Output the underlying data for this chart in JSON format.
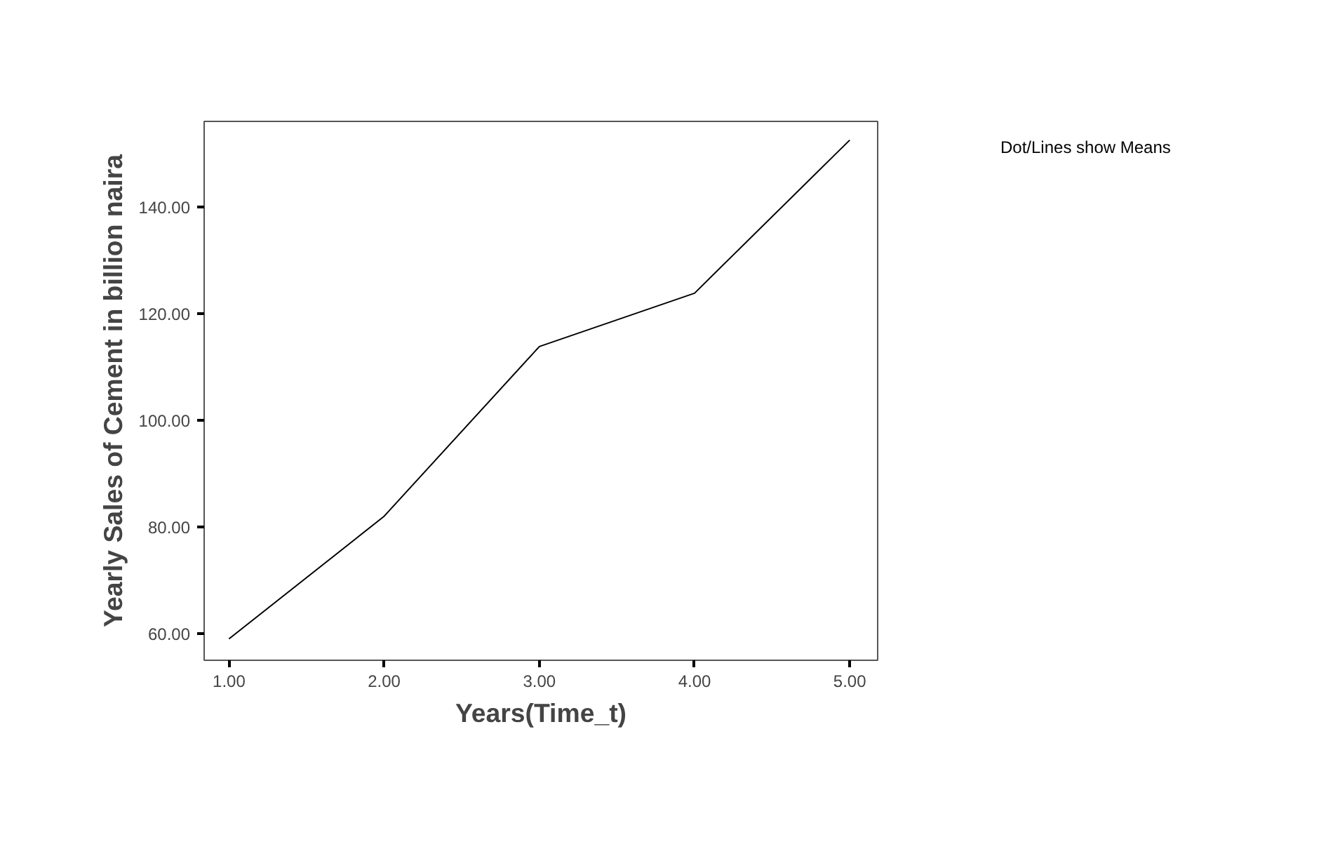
{
  "chart_data": {
    "type": "line",
    "xlabel": "Years(Time_t)",
    "ylabel": "Yearly Sales of Cement in billion naira",
    "annotations": [
      "Dot/Lines show Means"
    ],
    "x": [
      1,
      2,
      3,
      4,
      5
    ],
    "series": [
      {
        "color": "#000000",
        "values": [
          59,
          82,
          113.8,
          123.8,
          152.5
        ]
      }
    ],
    "xlim": [
      0.84,
      5.18
    ],
    "ylim": [
      55,
      156
    ],
    "xticks": [
      {
        "value": 1,
        "label": "1.00"
      },
      {
        "value": 2,
        "label": "2.00"
      },
      {
        "value": 3,
        "label": "3.00"
      },
      {
        "value": 4,
        "label": "4.00"
      },
      {
        "value": 5,
        "label": "5.00"
      }
    ],
    "yticks": [
      {
        "value": 60,
        "label": "60.00"
      },
      {
        "value": 80,
        "label": "80.00"
      },
      {
        "value": 100,
        "label": "100.00"
      },
      {
        "value": 120,
        "label": "120.00"
      },
      {
        "value": 140,
        "label": "140.00"
      }
    ],
    "grid": false,
    "marker": "none",
    "line_style": "solid"
  }
}
